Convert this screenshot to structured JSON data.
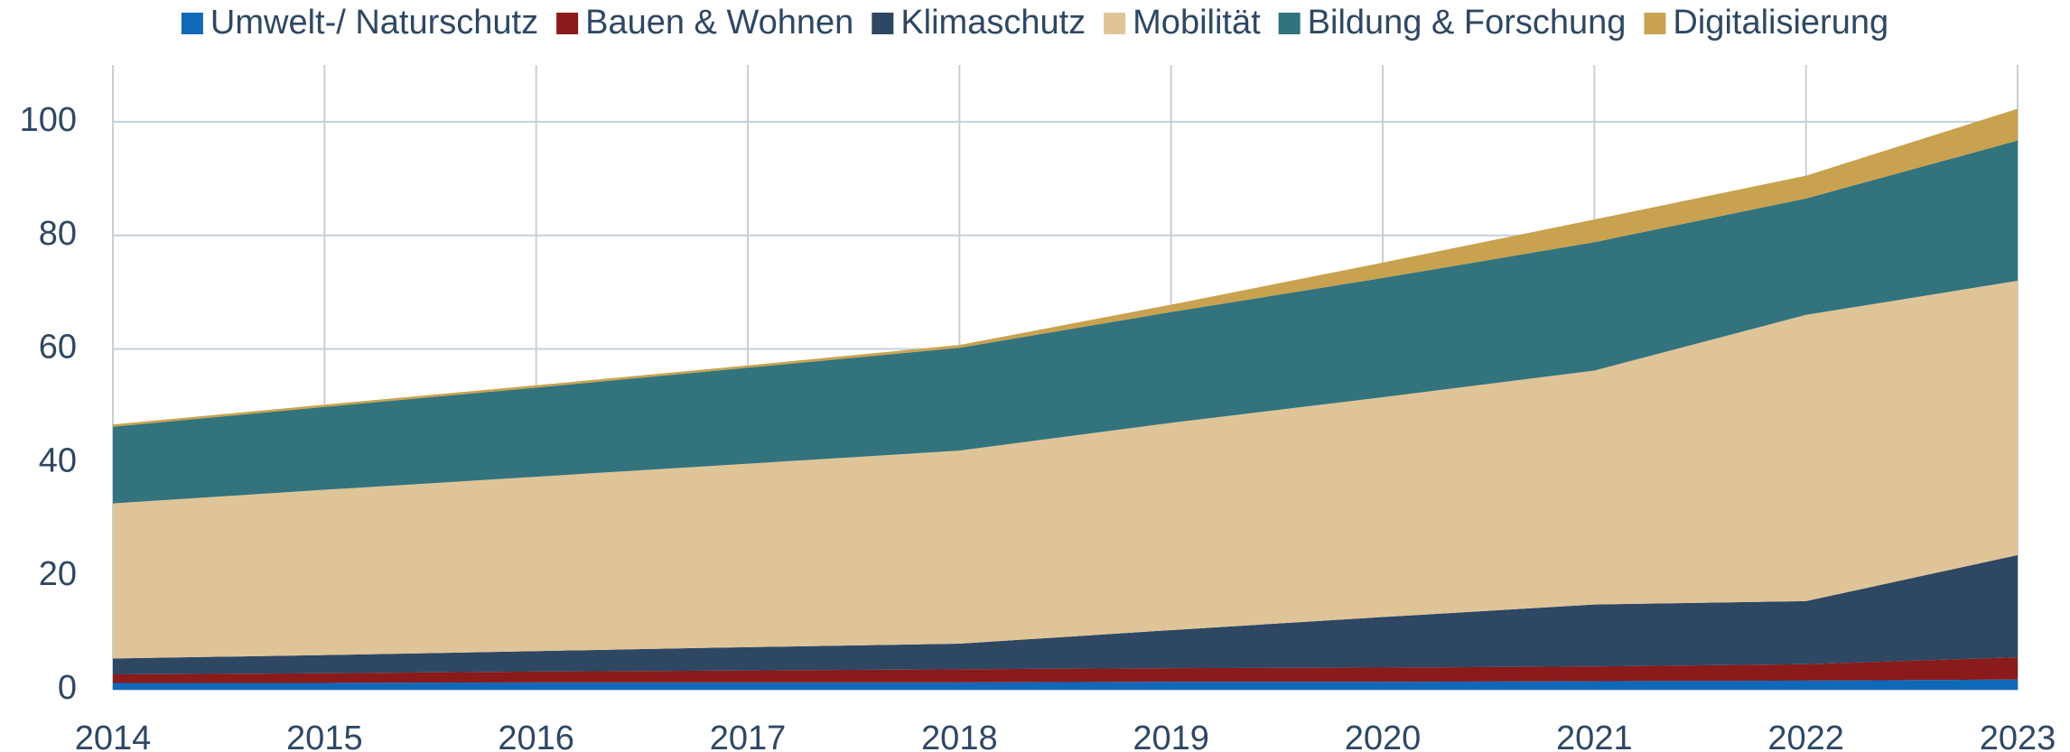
{
  "chart_data": {
    "type": "stacked_area",
    "categories": [
      "2014",
      "2015",
      "2016",
      "2017",
      "2018",
      "2019",
      "2020",
      "2021",
      "2022",
      "2023"
    ],
    "series": [
      {
        "name": "Umwelt-/ Naturschutz",
        "color": "#1068b8",
        "values": [
          1.2,
          1.2,
          1.3,
          1.3,
          1.3,
          1.4,
          1.4,
          1.5,
          1.6,
          1.8
        ]
      },
      {
        "name": "Bauen & Wohnen",
        "color": "#8b1a1a",
        "values": [
          1.5,
          1.7,
          1.9,
          2.1,
          2.3,
          2.4,
          2.5,
          2.6,
          2.9,
          3.9
        ]
      },
      {
        "name": "Klimaschutz",
        "color": "#2e4763",
        "values": [
          2.8,
          3.2,
          3.6,
          4.1,
          4.5,
          6.7,
          8.9,
          10.9,
          11.1,
          18.0
        ]
      },
      {
        "name": "Mobilität",
        "color": "#dfc498",
        "values": [
          27.3,
          29.1,
          30.7,
          32.3,
          34.0,
          36.5,
          38.7,
          41.2,
          50.4,
          48.3
        ]
      },
      {
        "name": "Bildung & Forschung",
        "color": "#33737d",
        "values": [
          13.5,
          14.6,
          15.7,
          16.9,
          18.1,
          19.5,
          21.0,
          22.6,
          20.5,
          24.7
        ]
      },
      {
        "name": "Digitalisierung",
        "color": "#c9a24f",
        "values": [
          0.4,
          0.4,
          0.4,
          0.4,
          0.5,
          1.3,
          2.7,
          4.0,
          4.0,
          5.6
        ]
      }
    ],
    "ylim": [
      0,
      110
    ],
    "yticks": [
      0,
      20,
      40,
      60,
      80,
      100
    ],
    "grid": true,
    "legend": "top"
  }
}
